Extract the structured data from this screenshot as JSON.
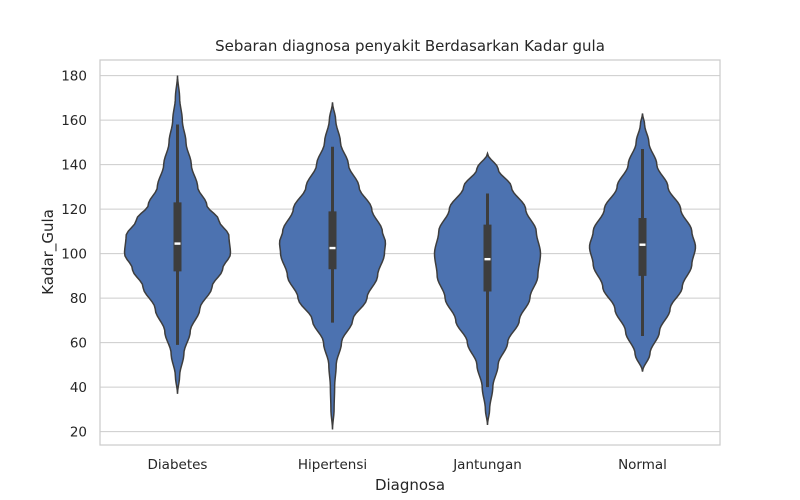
{
  "chart_data": {
    "type": "violin",
    "title": "Sebaran diagnosa penyakit Berdasarkan Kadar gula",
    "xlabel": "Diagnosa",
    "ylabel": "Kadar_Gula",
    "categories": [
      "Diabetes",
      "Hipertensi",
      "Jantungan",
      "Normal"
    ],
    "ylim": [
      14,
      187
    ],
    "yticks": [
      20,
      40,
      60,
      80,
      100,
      120,
      140,
      160,
      180
    ],
    "grid": "y",
    "color": "#4c72b0",
    "series": [
      {
        "category": "Diabetes",
        "min": 37,
        "max": 180,
        "whisker_low": 59,
        "whisker_high": 158,
        "q1": 92,
        "median": 104.5,
        "q3": 123,
        "density_profile": [
          [
            37,
            0.0
          ],
          [
            45,
            0.04
          ],
          [
            55,
            0.12
          ],
          [
            65,
            0.24
          ],
          [
            75,
            0.42
          ],
          [
            85,
            0.65
          ],
          [
            93,
            0.85
          ],
          [
            100,
            1.0
          ],
          [
            108,
            0.97
          ],
          [
            115,
            0.78
          ],
          [
            122,
            0.55
          ],
          [
            130,
            0.38
          ],
          [
            140,
            0.26
          ],
          [
            150,
            0.16
          ],
          [
            160,
            0.09
          ],
          [
            170,
            0.04
          ],
          [
            180,
            0.0
          ]
        ]
      },
      {
        "category": "Hipertensi",
        "min": 21,
        "max": 168,
        "whisker_low": 69,
        "whisker_high": 148,
        "q1": 93,
        "median": 102.5,
        "q3": 119,
        "density_profile": [
          [
            21,
            0.0
          ],
          [
            30,
            0.03
          ],
          [
            40,
            0.04
          ],
          [
            50,
            0.07
          ],
          [
            60,
            0.17
          ],
          [
            70,
            0.38
          ],
          [
            80,
            0.65
          ],
          [
            90,
            0.85
          ],
          [
            100,
            0.98
          ],
          [
            105,
            1.0
          ],
          [
            110,
            0.94
          ],
          [
            120,
            0.74
          ],
          [
            130,
            0.5
          ],
          [
            140,
            0.3
          ],
          [
            150,
            0.15
          ],
          [
            160,
            0.06
          ],
          [
            168,
            0.0
          ]
        ]
      },
      {
        "category": "Jantungan",
        "min": 23,
        "max": 145,
        "whisker_low": 40,
        "whisker_high": 127,
        "q1": 83,
        "median": 97.5,
        "q3": 113,
        "density_profile": [
          [
            23,
            0.0
          ],
          [
            30,
            0.04
          ],
          [
            40,
            0.1
          ],
          [
            50,
            0.2
          ],
          [
            60,
            0.38
          ],
          [
            70,
            0.6
          ],
          [
            80,
            0.8
          ],
          [
            90,
            0.95
          ],
          [
            100,
            1.0
          ],
          [
            110,
            0.92
          ],
          [
            120,
            0.72
          ],
          [
            130,
            0.45
          ],
          [
            138,
            0.2
          ],
          [
            145,
            0.0
          ]
        ]
      },
      {
        "category": "Normal",
        "min": 47,
        "max": 163,
        "whisker_low": 63,
        "whisker_high": 147,
        "q1": 90,
        "median": 104,
        "q3": 116,
        "density_profile": [
          [
            47,
            0.0
          ],
          [
            55,
            0.14
          ],
          [
            65,
            0.32
          ],
          [
            75,
            0.52
          ],
          [
            85,
            0.75
          ],
          [
            95,
            0.93
          ],
          [
            103,
            1.0
          ],
          [
            110,
            0.93
          ],
          [
            120,
            0.72
          ],
          [
            130,
            0.48
          ],
          [
            140,
            0.27
          ],
          [
            150,
            0.12
          ],
          [
            158,
            0.04
          ],
          [
            163,
            0.0
          ]
        ]
      }
    ]
  }
}
